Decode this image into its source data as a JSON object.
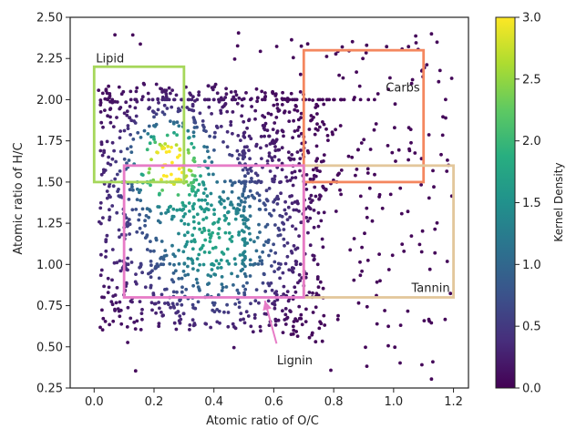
{
  "chart_data": {
    "type": "scatter",
    "title": "",
    "xlabel": "Atomic ratio of O/C",
    "ylabel": "Atomic ratio of H/C",
    "xlim": [
      -0.08,
      1.25
    ],
    "ylim": [
      0.25,
      2.5
    ],
    "x_ticks": [
      0.0,
      0.2,
      0.4,
      0.6,
      0.8,
      1.0,
      1.2
    ],
    "x_tick_labels": [
      "0.0",
      "0.2",
      "0.4",
      "0.6",
      "0.8",
      "1.0",
      "1.2"
    ],
    "y_ticks": [
      0.25,
      0.5,
      0.75,
      1.0,
      1.25,
      1.5,
      1.75,
      2.0,
      2.25,
      2.5
    ],
    "y_tick_labels": [
      "0.25",
      "0.50",
      "0.75",
      "1.00",
      "1.25",
      "1.50",
      "1.75",
      "2.00",
      "2.25",
      "2.50"
    ],
    "grid": false,
    "colormap": "viridis",
    "colorbar": {
      "label": "Kernel Density",
      "range": [
        0.0,
        3.0
      ],
      "ticks": [
        0.0,
        0.5,
        1.0,
        1.5,
        2.0,
        2.5,
        3.0
      ],
      "tick_labels": [
        "0.0",
        "0.5",
        "1.0",
        "1.5",
        "2.0",
        "2.5",
        "3.0"
      ]
    },
    "regions": [
      {
        "label": "Lipid",
        "x": [
          0.0,
          0.3
        ],
        "y": [
          1.5,
          2.2
        ],
        "color": "#a6d75b"
      },
      {
        "label": "Carbs",
        "x": [
          0.7,
          1.1
        ],
        "y": [
          1.5,
          2.3
        ],
        "color": "#f4875f"
      },
      {
        "label": "Tannin",
        "x": [
          0.7,
          1.2
        ],
        "y": [
          0.8,
          1.6
        ],
        "color": "#e3c79b"
      },
      {
        "label": "Lignin",
        "x": [
          0.1,
          0.7
        ],
        "y": [
          0.8,
          1.6
        ],
        "color": "#e77cc7"
      }
    ],
    "annotations": [
      {
        "text": "Lipid",
        "region": "Lipid"
      },
      {
        "text": "Carbs",
        "region": "Carbs"
      },
      {
        "text": "Tannin",
        "region": "Tannin"
      },
      {
        "text": "Lignin",
        "arrow_to": [
          0.57,
          0.78
        ],
        "text_at": [
          0.67,
          0.42
        ],
        "color": "#e77cc7"
      }
    ],
    "density_hotspots": [
      {
        "x": 0.25,
        "y": 1.62,
        "density": 3.0
      },
      {
        "x": 0.42,
        "y": 1.12,
        "density": 1.2
      }
    ]
  }
}
